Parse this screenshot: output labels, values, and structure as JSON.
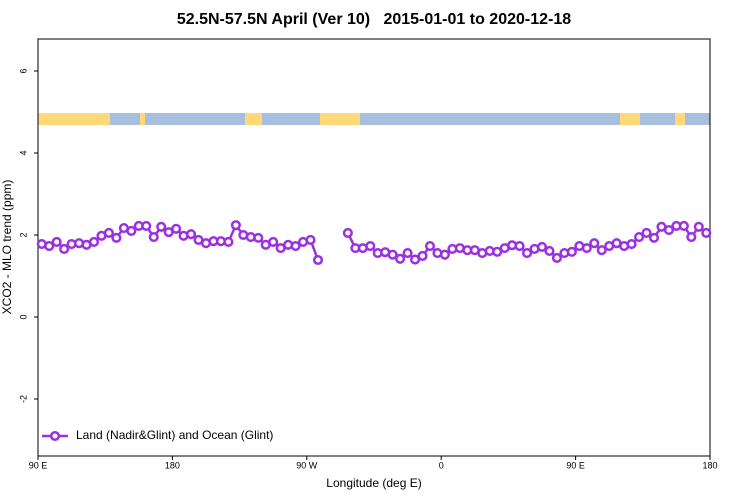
{
  "chart_data": {
    "type": "line",
    "title": "52.5N-57.5N April (Ver 10)   2015-01-01 to 2020-12-18",
    "x_label": "Longitude (deg E)",
    "y_label": "XCO2 - MLO trend (ppm)",
    "x": [
      92.5,
      97.5,
      102.5,
      107.5,
      112.5,
      117.5,
      122.5,
      127.5,
      132.5,
      137.5,
      142.5,
      147.5,
      152.5,
      157.5,
      162.5,
      167.5,
      172.5,
      177.5,
      182.5,
      187.5,
      192.5,
      197.5,
      202.5,
      207.5,
      212.5,
      217.5,
      222.5,
      227.5,
      232.5,
      237.5,
      242.5,
      247.5,
      252.5,
      257.5,
      262.5,
      267.5,
      272.5,
      277.5,
      282.5,
      287.5,
      292.5,
      297.5,
      302.5,
      307.5,
      312.5,
      317.5,
      322.5,
      327.5,
      332.5,
      337.5,
      342.5,
      347.5,
      352.5,
      357.5,
      362.5,
      367.5,
      372.5,
      377.5,
      382.5,
      387.5,
      392.5,
      397.5,
      402.5,
      407.5,
      412.5,
      417.5,
      422.5,
      427.5,
      432.5,
      437.5,
      442.5,
      447.5,
      452.5,
      457.5,
      462.5,
      467.5,
      472.5,
      477.5,
      482.5,
      487.5,
      492.5,
      497.5,
      502.5,
      507.5,
      512.5,
      517.5,
      522.5,
      527.5,
      532.5,
      537.5
    ],
    "series": [
      {
        "name": "Land (Nadir&Glint) and Ocean (Glint)",
        "color": "#9b30e0",
        "values": [
          1.78,
          1.73,
          1.83,
          1.66,
          1.78,
          1.8,
          1.76,
          1.83,
          1.98,
          2.05,
          1.93,
          2.17,
          2.1,
          2.22,
          2.22,
          1.95,
          2.2,
          2.07,
          2.15,
          1.98,
          2.02,
          1.88,
          1.8,
          1.85,
          1.85,
          1.83,
          2.24,
          2.0,
          1.95,
          1.93,
          1.76,
          1.83,
          1.68,
          1.76,
          1.73,
          1.83,
          1.88,
          1.39,
          null,
          null,
          null,
          2.05,
          1.68,
          1.68,
          1.73,
          1.56,
          1.58,
          1.52,
          1.42,
          1.56,
          1.4,
          1.49,
          1.73,
          1.56,
          1.52,
          1.66,
          1.68,
          1.63,
          1.63,
          1.56,
          1.61,
          1.59,
          1.68,
          1.75,
          1.73,
          1.56,
          1.66,
          1.71,
          1.61,
          1.44,
          1.56,
          1.59,
          1.73,
          1.68,
          1.8,
          1.63,
          1.73,
          1.8,
          1.73,
          1.78,
          1.95,
          2.05,
          1.93,
          2.2,
          2.12,
          2.22,
          2.22,
          1.95,
          2.2,
          2.05
        ]
      }
    ],
    "xlim": [
      90,
      540
    ],
    "xticks": [
      {
        "value": 90,
        "label": "90 E"
      },
      180,
      {
        "value": 270,
        "label": "90 W"
      },
      {
        "value": 360,
        "label": "0"
      },
      {
        "value": 450,
        "label": "90 E"
      },
      {
        "value": 540,
        "label": "180"
      }
    ],
    "ylim": [
      -3.39,
      6.78
    ],
    "yticks": [
      -2,
      0,
      2,
      4,
      6
    ],
    "legend": "bottom-left"
  }
}
